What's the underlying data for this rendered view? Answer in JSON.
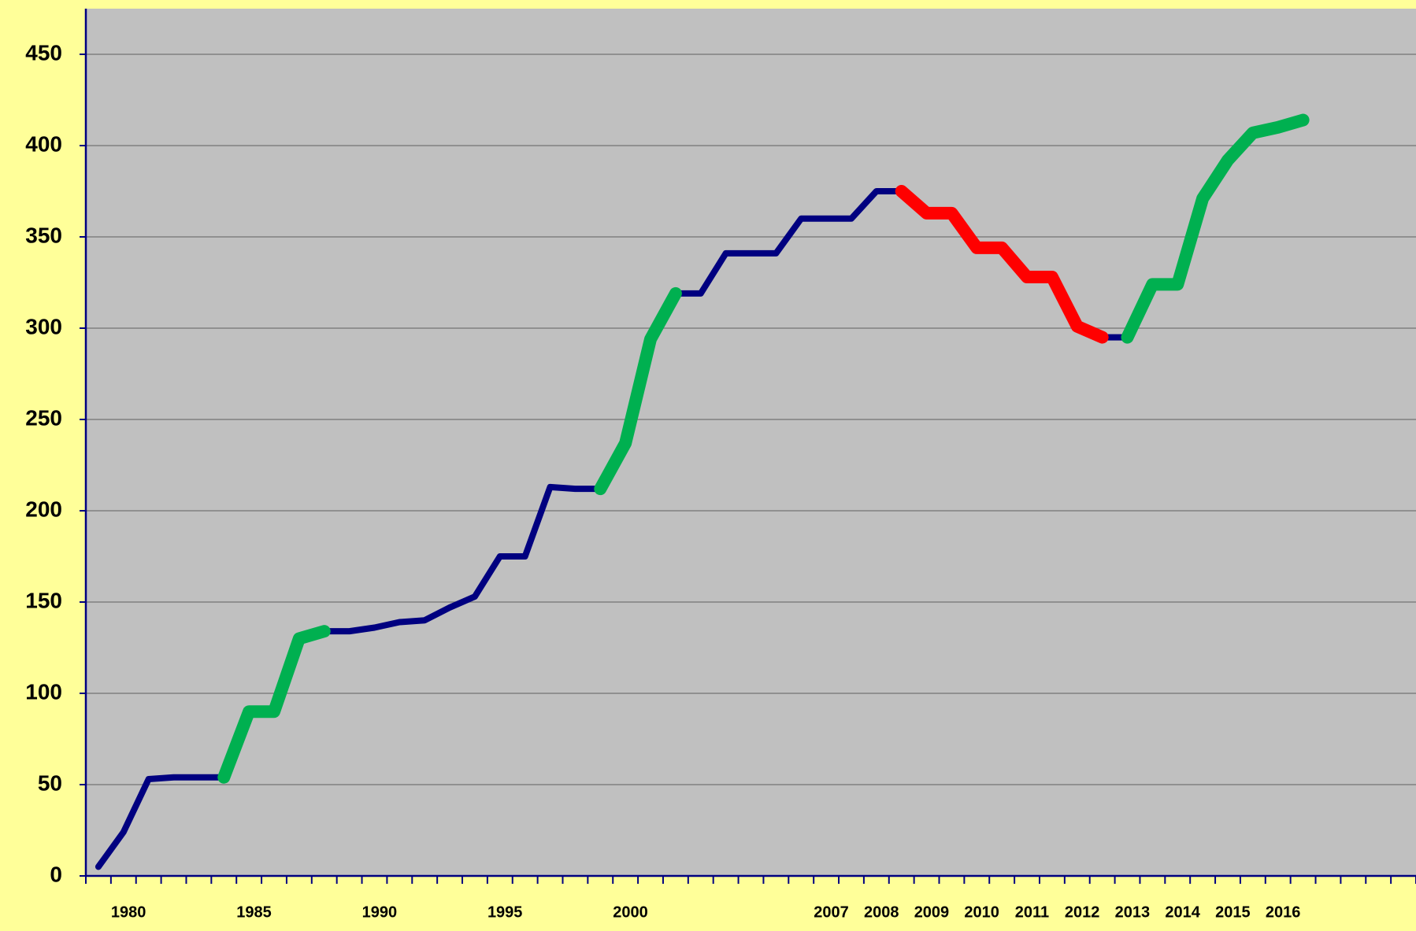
{
  "chart_data": {
    "type": "line",
    "categories": [
      null,
      "1980",
      null,
      null,
      null,
      null,
      "1985",
      null,
      null,
      null,
      null,
      "1990",
      null,
      null,
      null,
      null,
      "1995",
      null,
      null,
      null,
      null,
      "2000",
      null,
      null,
      null,
      null,
      null,
      null,
      null,
      "2007",
      null,
      "2008",
      null,
      "2009",
      null,
      "2010",
      null,
      "2011",
      null,
      "2012",
      null,
      "2013",
      null,
      "2014",
      null,
      "2015",
      null,
      "2016",
      null,
      null,
      null,
      null,
      null
    ],
    "series": [
      {
        "color": "#000080",
        "values": [
          5,
          24,
          53,
          54,
          54,
          54,
          90,
          90,
          130,
          134,
          134,
          136,
          139,
          140,
          147,
          153,
          175,
          175,
          213,
          212,
          212,
          237,
          294,
          319,
          319,
          341,
          341,
          341,
          360,
          360,
          360,
          375,
          375,
          363,
          363,
          344,
          344,
          328,
          328,
          301,
          295,
          295,
          324,
          324,
          371,
          392,
          407,
          410,
          414,
          null,
          null,
          null,
          null
        ]
      },
      {
        "color": "#00b050",
        "values": [
          null,
          null,
          null,
          null,
          null,
          54,
          90,
          90,
          130,
          134,
          null,
          null,
          null,
          null,
          null,
          null,
          null,
          null,
          null,
          null,
          212,
          237,
          294,
          319,
          null,
          null,
          null,
          null,
          null,
          null,
          null,
          null,
          null,
          null,
          null,
          null,
          null,
          null,
          null,
          null,
          null,
          295,
          324,
          324,
          371,
          392,
          407,
          410,
          414,
          null,
          null,
          null,
          null
        ]
      },
      {
        "color": "#ff0000",
        "values": [
          null,
          null,
          null,
          null,
          null,
          null,
          null,
          null,
          null,
          null,
          null,
          null,
          null,
          null,
          null,
          null,
          null,
          null,
          null,
          null,
          null,
          null,
          null,
          null,
          null,
          null,
          null,
          null,
          null,
          null,
          null,
          null,
          375,
          363,
          363,
          344,
          344,
          328,
          328,
          301,
          295,
          null,
          null,
          null,
          null,
          null,
          null,
          null,
          null,
          null,
          null,
          null,
          null
        ]
      }
    ],
    "ylim": [
      0,
      475
    ],
    "yticks": [
      0,
      50,
      100,
      150,
      200,
      250,
      300,
      350,
      400,
      450
    ],
    "grid": true
  }
}
